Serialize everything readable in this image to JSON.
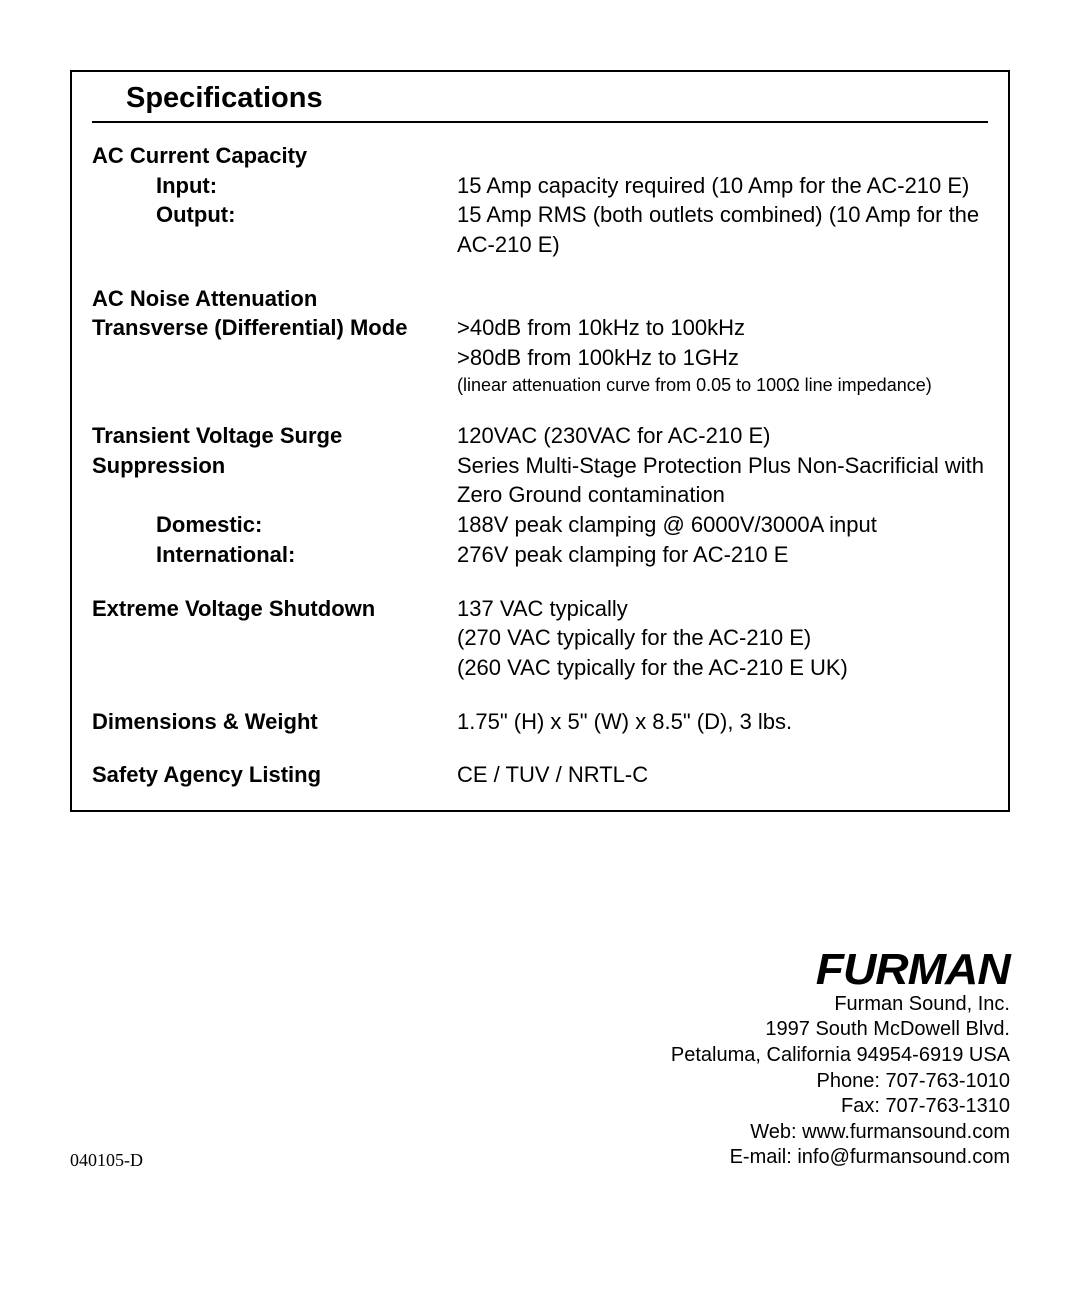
{
  "title": "Specifications",
  "sections": {
    "ac_current": {
      "heading": "AC Current Capacity",
      "input_label": "Input:",
      "input_value": "15 Amp capacity required (10 Amp for the AC-210 E)",
      "output_label": "Output:",
      "output_value": "15 Amp RMS (both outlets combined) (10 Amp for the AC-210 E)"
    },
    "noise": {
      "heading": "AC Noise Attenuation",
      "sub_label": "Transverse (Differential) Mode",
      "line1": ">40dB from 10kHz to 100kHz",
      "line2": ">80dB from 100kHz to 1GHz",
      "note": "(linear attenuation curve from 0.05 to 100Ω line impedance)"
    },
    "surge": {
      "heading1": "Transient Voltage Surge",
      "heading2": "Suppression",
      "value1": "120VAC (230VAC for AC-210 E)",
      "value2": "Series Multi-Stage Protection Plus Non-Sacrificial with Zero Ground contamination",
      "domestic_label": "Domestic:",
      "domestic_value": "188V peak clamping @ 6000V/3000A input",
      "intl_label": "International:",
      "intl_value": "276V peak clamping for AC-210 E"
    },
    "evs": {
      "heading": "Extreme Voltage Shutdown",
      "line1": "137 VAC typically",
      "line2": "(270 VAC typically for the AC-210 E)",
      "line3": "(260 VAC typically for the AC-210 E UK)"
    },
    "dims": {
      "heading": "Dimensions & Weight",
      "value": "1.75\" (H) x 5\" (W) x 8.5\" (D), 3 lbs."
    },
    "safety": {
      "heading": "Safety Agency Listing",
      "value": "CE / TUV / NRTL-C"
    }
  },
  "footer": {
    "doc_id": "040105-D",
    "logo": "FURMAN",
    "company": "Furman Sound, Inc.",
    "addr1": "1997 South McDowell Blvd.",
    "addr2": "Petaluma, California 94954-6919 USA",
    "phone": "Phone: 707-763-1010",
    "fax": "Fax: 707-763-1310",
    "web": "Web: www.furmansound.com",
    "email": "E-mail: info@furmansound.com"
  }
}
